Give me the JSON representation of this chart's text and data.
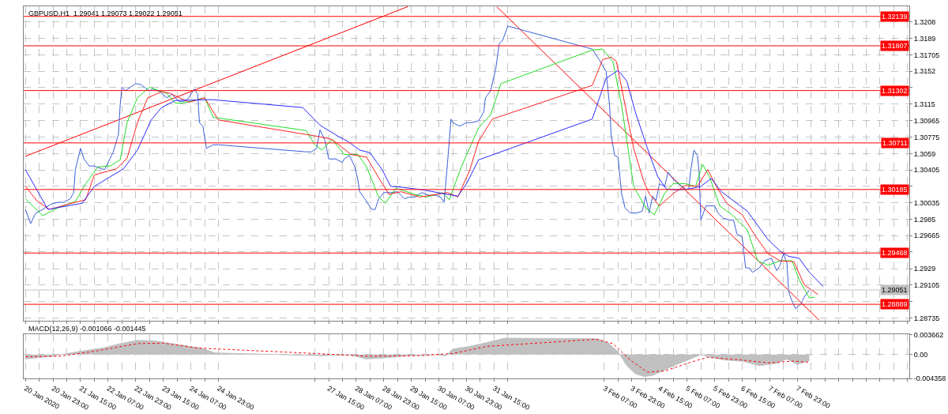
{
  "chart_data": [
    {
      "type": "line",
      "title": "GBPUSD,H1  1.29041 1.29073 1.29022 1.29051",
      "xlim": [
        "2020-01-20T06:00",
        "2020-02-10T16:00"
      ],
      "ylim": [
        1.28703,
        1.32253
      ],
      "tick_labels": "y",
      "grid": true,
      "marker": "none",
      "xticks": [
        {
          "value": "2020-01-20T07:00",
          "label": null
        },
        {
          "value": "2020-01-20T15:00",
          "label": null
        },
        {
          "value": "2020-01-20T23:00",
          "label": null
        },
        {
          "value": "2020-01-21T07:00",
          "label": null
        },
        {
          "value": "2020-01-21T15:00",
          "label": null
        },
        {
          "value": "2020-01-21T23:00",
          "label": null
        },
        {
          "value": "2020-01-22T07:00",
          "label": null
        },
        {
          "value": "2020-01-22T15:00",
          "label": null
        },
        {
          "value": "2020-01-22T23:00",
          "label": null
        },
        {
          "value": "2020-01-23T07:00",
          "label": null
        },
        {
          "value": "2020-01-23T15:00",
          "label": null
        },
        {
          "value": "2020-01-23T23:00",
          "label": null
        },
        {
          "value": "2020-01-24T07:00",
          "label": null
        },
        {
          "value": "2020-01-24T15:00",
          "label": null
        },
        {
          "value": "2020-01-24T23:00",
          "label": null
        },
        {
          "value": "2020-01-27T07:00",
          "label": null
        },
        {
          "value": "2020-01-27T15:00",
          "label": null
        },
        {
          "value": "2020-01-27T23:00",
          "label": null
        },
        {
          "value": "2020-01-28T07:00",
          "label": null
        },
        {
          "value": "2020-01-28T15:00",
          "label": null
        },
        {
          "value": "2020-01-28T23:00",
          "label": null
        },
        {
          "value": "2020-01-29T07:00",
          "label": null
        },
        {
          "value": "2020-01-29T15:00",
          "label": null
        },
        {
          "value": "2020-01-29T23:00",
          "label": null
        },
        {
          "value": "2020-01-30T07:00",
          "label": null
        },
        {
          "value": "2020-01-30T15:00",
          "label": null
        },
        {
          "value": "2020-01-30T23:00",
          "label": null
        },
        {
          "value": "2020-01-31T07:00",
          "label": null
        },
        {
          "value": "2020-01-31T15:00",
          "label": null
        },
        {
          "value": "2020-01-31T23:00",
          "label": null
        },
        {
          "value": "2020-02-03T07:00",
          "label": null
        },
        {
          "value": "2020-02-03T15:00",
          "label": null
        },
        {
          "value": "2020-02-03T23:00",
          "label": null
        },
        {
          "value": "2020-02-04T07:00",
          "label": null
        },
        {
          "value": "2020-02-04T15:00",
          "label": null
        },
        {
          "value": "2020-02-04T23:00",
          "label": null
        },
        {
          "value": "2020-02-05T07:00",
          "label": null
        },
        {
          "value": "2020-02-05T15:00",
          "label": null
        },
        {
          "value": "2020-02-05T23:00",
          "label": null
        },
        {
          "value": "2020-02-06T07:00",
          "label": null
        },
        {
          "value": "2020-02-06T15:00",
          "label": null
        },
        {
          "value": "2020-02-06T23:00",
          "label": null
        },
        {
          "value": "2020-02-07T07:00",
          "label": null
        },
        {
          "value": "2020-02-07T15:00",
          "label": null
        },
        {
          "value": "2020-02-07T23:00",
          "label": null
        },
        {
          "value": "2020-02-08T07:00",
          "label": null
        },
        {
          "value": "2020-02-08T15:00",
          "label": null
        },
        {
          "value": "2020-02-08T23:00",
          "label": null
        },
        {
          "value": "2020-02-09T07:00",
          "label": null
        },
        {
          "value": "2020-02-09T15:00",
          "label": null
        },
        {
          "value": "2020-02-09T23:00",
          "label": null
        },
        {
          "value": "2020-02-10T07:00",
          "label": null
        },
        {
          "value": "2020-02-10T15:00",
          "label": null
        }
      ],
      "yticks": [
        1.3208,
        1.3189,
        1.31705,
        1.3152,
        {
          "value": 1.31335,
          "label": null
        },
        1.3115,
        1.30965,
        1.30775,
        1.3059,
        1.30405,
        {
          "value": 1.3022,
          "label": null
        },
        1.30035,
        1.2985,
        1.29665,
        {
          "value": 1.2948,
          "label": null
        },
        1.2929,
        1.29105,
        {
          "value": 1.2892,
          "label": null
        },
        1.28735
      ],
      "ref_lines": [
        {
          "axis": "y",
          "value": 1.32139,
          "label": "1.32139",
          "color": "#ff0000"
        },
        {
          "axis": "y",
          "value": 1.31807,
          "label": "1.31807",
          "color": "#ff0000"
        },
        {
          "axis": "y",
          "value": 1.31302,
          "label": "1.31302",
          "color": "#ff0000"
        },
        {
          "axis": "y",
          "value": 1.30711,
          "label": "1.30711",
          "color": "#ff0000"
        },
        {
          "axis": "y",
          "value": 1.30185,
          "label": "1.30185",
          "color": "#ff0000"
        },
        {
          "axis": "y",
          "value": 1.29468,
          "label": "1.29468",
          "color": "#ff0000"
        },
        {
          "axis": "y",
          "value": 1.28889,
          "label": "1.28889",
          "color": "#ff0000"
        },
        {
          "axis": "y",
          "value": 1.29051,
          "label": "1.29051",
          "color": "#c0c0c0"
        }
      ],
      "series": [
        {
          "type": "line",
          "color": "#ff0000",
          "x": [
            "2020-01-20T07:00",
            "2020-01-29T13:00"
          ],
          "values": [
            1.3056,
            1.3225
          ]
        },
        {
          "type": "line",
          "color": "#ff0000",
          "x": [
            "2020-01-31T16:30",
            "2020-02-08T11:40"
          ],
          "values": [
            1.3225,
            1.2871
          ]
        },
        {
          "color": "#3b5fd9",
          "x": [
            "2020-01-20T07:00",
            "2020-01-20T10:00",
            "2020-01-20T13:00",
            "2020-01-20T17:00",
            "2020-01-20T22:00",
            "2020-01-21T02:00",
            "2020-01-21T05:00",
            "2020-01-21T09:00",
            "2020-01-21T11:00",
            "2020-01-21T12:00",
            "2020-01-21T15:00",
            "2020-01-21T17:00",
            "2020-01-21T20:00",
            "2020-01-21T23:00",
            "2020-01-22T03:00",
            "2020-01-22T05:00",
            "2020-01-22T08:00",
            "2020-01-22T10:00",
            "2020-01-22T13:00",
            "2020-01-22T14:00",
            "2020-01-22T15:00",
            "2020-01-22T17:00",
            "2020-01-22T20:00",
            "2020-01-22T23:00",
            "2020-01-23T02:00",
            "2020-01-23T04:00",
            "2020-01-23T07:00",
            "2020-01-23T09:00",
            "2020-01-23T13:00",
            "2020-01-23T17:00",
            "2020-01-23T20:00",
            "2020-01-24T00:00",
            "2020-01-24T03:00",
            "2020-01-24T05:00",
            "2020-01-24T09:00",
            "2020-01-24T11:00",
            "2020-01-24T12:00",
            "2020-01-24T14:00",
            "2020-01-24T16:00",
            "2020-01-24T20:00",
            "2020-01-24T23:00",
            "2020-01-27T02:00",
            "2020-01-27T05:00",
            "2020-01-27T08:00",
            "2020-01-27T10:00",
            "2020-01-27T13:00",
            "2020-01-27T15:00",
            "2020-01-27T19:00",
            "2020-01-27T23:00",
            "2020-01-28T00:00",
            "2020-01-28T03:00",
            "2020-01-28T06:00",
            "2020-01-28T08:00",
            "2020-01-28T09:00",
            "2020-01-28T12:00",
            "2020-01-28T16:00",
            "2020-01-28T18:00",
            "2020-01-28T20:00",
            "2020-01-28T23:00",
            "2020-01-29T03:00",
            "2020-01-29T07:00",
            "2020-01-29T11:00",
            "2020-01-29T14:00",
            "2020-01-29T17:00",
            "2020-01-29T21:00",
            "2020-01-30T01:00",
            "2020-01-30T05:00",
            "2020-01-30T08:00",
            "2020-01-30T10:00",
            "2020-01-30T12:00",
            "2020-01-30T14:00",
            "2020-01-30T15:00",
            "2020-01-30T19:00",
            "2020-01-30T23:00",
            "2020-01-31T02:00",
            "2020-01-31T06:00",
            "2020-01-31T09:00",
            "2020-01-31T10:00",
            "2020-01-31T13:00",
            "2020-01-31T16:00",
            "2020-01-31T18:00",
            "2020-01-31T20:00",
            "2020-01-31T23:00",
            "2020-02-03T00:00",
            "2020-02-03T04:00",
            "2020-02-03T08:00",
            "2020-02-03T10:00",
            "2020-02-03T11:00",
            "2020-02-03T13:00",
            "2020-02-03T15:00",
            "2020-02-03T17:00",
            "2020-02-03T19:00",
            "2020-02-03T22:00",
            "2020-02-04T02:00",
            "2020-02-04T05:00",
            "2020-02-04T07:00",
            "2020-02-04T09:00",
            "2020-02-04T11:00",
            "2020-02-04T13:00",
            "2020-02-04T15:00",
            "2020-02-04T18:00",
            "2020-02-04T20:00",
            "2020-02-04T23:00",
            "2020-02-05T02:00",
            "2020-02-05T06:00",
            "2020-02-05T08:00",
            "2020-02-05T09:00",
            "2020-02-05T11:00",
            "2020-02-05T13:00",
            "2020-02-05T14:00",
            "2020-02-05T15:00",
            "2020-02-05T18:00",
            "2020-02-05T20:00",
            "2020-02-05T23:00",
            "2020-02-06T01:00",
            "2020-02-06T04:00",
            "2020-02-06T08:00",
            "2020-02-06T10:00",
            "2020-02-06T12:00",
            "2020-02-06T15:00",
            "2020-02-06T17:00",
            "2020-02-06T19:00",
            "2020-02-06T21:00",
            "2020-02-07T01:00",
            "2020-02-07T04:00",
            "2020-02-07T08:00",
            "2020-02-07T11:00",
            "2020-02-07T13:00",
            "2020-02-07T15:00",
            "2020-02-07T17:00",
            "2020-02-07T18:00",
            "2020-02-07T20:00",
            "2020-02-07T22:00",
            "2020-02-08T01:00",
            "2020-02-08T03:00",
            "2020-02-08T06:00"
          ],
          "values": [
            1.2996,
            1.298,
            1.2992,
            1.2996,
            1.3002,
            1.3004,
            1.3004,
            1.3008,
            1.3015,
            1.3041,
            1.3065,
            1.3053,
            1.3045,
            1.3045,
            1.3042,
            1.3041,
            1.3053,
            1.3061,
            1.3081,
            1.3114,
            1.3134,
            1.313,
            1.3134,
            1.3138,
            1.3137,
            1.3134,
            1.313,
            1.3132,
            1.3129,
            1.3122,
            1.3126,
            1.3118,
            1.3118,
            1.312,
            1.3132,
            1.3126,
            1.3094,
            1.309,
            1.3065,
            1.3069,
            1.3069,
            1.3061,
            1.3061,
            1.3065,
            1.3086,
            1.3073,
            1.3053,
            1.3053,
            1.3049,
            1.3053,
            1.3057,
            1.3045,
            1.3029,
            1.3016,
            1.3008,
            1.2996,
            1.2996,
            1.3008,
            1.3015,
            1.3015,
            1.3016,
            1.3008,
            1.301,
            1.301,
            1.3015,
            1.3012,
            1.3012,
            1.301,
            1.3004,
            1.3049,
            1.3098,
            1.3094,
            1.309,
            1.3094,
            1.3094,
            1.3096,
            1.3106,
            1.3122,
            1.313,
            1.3155,
            1.3183,
            1.3187,
            1.3203,
            1.3177,
            1.3165,
            1.3152,
            1.3114,
            1.3079,
            1.3057,
            1.3055,
            1.3014,
            1.2998,
            1.2992,
            1.2992,
            1.2994,
            1.3011,
            1.2992,
            1.3011,
            1.3006,
            1.3025,
            1.3022,
            1.3038,
            1.303,
            1.3025,
            1.3019,
            1.3019,
            1.3038,
            1.3063,
            1.3057,
            1.3038,
            1.2984,
            1.3,
            1.3,
            1.3,
            1.2992,
            1.2986,
            1.2984,
            1.2984,
            1.2968,
            1.2965,
            1.293,
            1.293,
            1.2925,
            1.293,
            1.2938,
            1.2941,
            1.2927,
            1.2933,
            1.2946,
            1.2935,
            1.2903,
            1.2892,
            1.2884,
            1.2889,
            1.2897,
            1.2905
          ]
        },
        {
          "color": "#22dd22",
          "x": [
            "2020-01-20T07:00",
            "2020-01-20T17:00",
            "2020-01-21T02:00",
            "2020-01-21T12:00",
            "2020-01-21T18:00",
            "2020-01-22T01:00",
            "2020-01-22T08:00",
            "2020-01-22T14:00",
            "2020-01-22T18:00",
            "2020-01-23T00:00",
            "2020-01-23T07:00",
            "2020-01-23T17:00",
            "2020-01-23T22:00",
            "2020-01-24T02:00",
            "2020-01-24T09:00",
            "2020-01-24T15:00",
            "2020-01-24T20:00",
            "2020-01-27T02:00",
            "2020-01-27T07:00",
            "2020-01-27T11:00",
            "2020-01-27T17:00",
            "2020-01-28T00:00",
            "2020-01-28T08:00",
            "2020-01-28T13:00",
            "2020-01-28T20:00",
            "2020-01-29T00:00",
            "2020-01-29T06:00",
            "2020-01-29T17:00",
            "2020-01-30T00:00",
            "2020-01-30T09:00",
            "2020-01-30T13:00",
            "2020-01-30T20:00",
            "2020-01-31T06:00",
            "2020-01-31T13:00",
            "2020-01-31T19:00",
            "2020-02-03T00:00",
            "2020-02-03T06:00",
            "2020-02-03T12:00",
            "2020-02-03T17:00",
            "2020-02-04T00:00",
            "2020-02-04T07:00",
            "2020-02-04T12:00",
            "2020-02-04T18:00",
            "2020-02-04T23:00",
            "2020-02-05T06:00",
            "2020-02-05T12:00",
            "2020-02-05T16:00",
            "2020-02-05T20:00",
            "2020-02-06T02:00",
            "2020-02-06T09:00",
            "2020-02-06T18:00",
            "2020-02-07T00:00",
            "2020-02-07T06:00",
            "2020-02-07T13:00",
            "2020-02-07T20:00",
            "2020-02-08T00:00",
            "2020-02-08T06:00",
            "2020-02-08T09:00"
          ],
          "values": [
            1.3008,
            1.2989,
            1.2998,
            1.3005,
            1.3025,
            1.3044,
            1.3045,
            1.3052,
            1.3094,
            1.3122,
            1.3134,
            1.3127,
            1.3116,
            1.3116,
            1.3119,
            1.3122,
            1.31,
            1.3085,
            1.3069,
            1.3063,
            1.3075,
            1.3058,
            1.3058,
            1.3044,
            1.301,
            1.3003,
            1.302,
            1.3013,
            1.301,
            1.3015,
            1.3007,
            1.3044,
            1.3088,
            1.3103,
            1.3138,
            1.3176,
            1.3177,
            1.3163,
            1.3114,
            1.3022,
            1.2998,
            1.299,
            1.3014,
            1.3025,
            1.3025,
            1.3022,
            1.3047,
            1.3033,
            1.3,
            1.299,
            1.2973,
            1.2938,
            1.2933,
            1.2938,
            1.2938,
            1.2917,
            1.2896,
            1.2897
          ]
        },
        {
          "color": "#ff2020",
          "x": [
            "2020-01-20T07:00",
            "2020-01-20T14:00",
            "2020-01-20T21:00",
            "2020-01-21T10:00",
            "2020-01-21T18:00",
            "2020-01-21T23:00",
            "2020-01-22T12:00",
            "2020-01-22T18:00",
            "2020-01-23T00:00",
            "2020-01-23T06:00",
            "2020-01-23T14:00",
            "2020-01-23T19:00",
            "2020-01-24T06:00",
            "2020-01-24T15:00",
            "2020-01-24T23:00",
            "2020-01-27T10:00",
            "2020-01-27T17:00",
            "2020-01-28T04:00",
            "2020-01-28T13:00",
            "2020-01-28T20:00",
            "2020-01-29T02:00",
            "2020-01-29T09:00",
            "2020-01-29T20:00",
            "2020-01-30T12:00",
            "2020-01-30T18:00",
            "2020-01-31T01:00",
            "2020-01-31T06:00",
            "2020-01-31T14:00",
            "2020-02-03T00:00",
            "2020-02-03T06:00",
            "2020-02-03T11:00",
            "2020-02-03T14:00",
            "2020-02-03T19:00",
            "2020-02-04T00:00",
            "2020-02-04T06:00",
            "2020-02-04T09:00",
            "2020-02-04T15:00",
            "2020-02-04T23:00",
            "2020-02-05T06:00",
            "2020-02-05T13:00",
            "2020-02-05T19:00",
            "2020-02-06T00:00",
            "2020-02-06T06:00",
            "2020-02-06T15:00",
            "2020-02-06T22:00",
            "2020-02-07T06:00",
            "2020-02-07T13:00",
            "2020-02-07T21:00",
            "2020-02-08T03:00",
            "2020-02-08T11:00"
          ],
          "values": [
            1.3022,
            1.3005,
            1.2996,
            1.3003,
            1.3007,
            1.3035,
            1.3042,
            1.3054,
            1.3094,
            1.3122,
            1.3129,
            1.3127,
            1.3117,
            1.3122,
            1.3097,
            1.3078,
            1.3075,
            1.3058,
            1.3055,
            1.3032,
            1.3013,
            1.3016,
            1.301,
            1.3015,
            1.301,
            1.3041,
            1.3073,
            1.3098,
            1.3136,
            1.3165,
            1.3168,
            1.3163,
            1.3114,
            1.3065,
            1.3027,
            1.3014,
            1.3,
            1.3014,
            1.3023,
            1.3022,
            1.3041,
            1.3022,
            1.3003,
            1.299,
            1.2968,
            1.2946,
            1.2938,
            1.2937,
            1.2911,
            1.29
          ]
        },
        {
          "color": "#2a2aff",
          "x": [
            "2020-01-20T07:00",
            "2020-01-20T20:00",
            "2020-01-21T16:00",
            "2020-01-21T23:00",
            "2020-01-22T16:00",
            "2020-01-23T00:00",
            "2020-01-23T08:00",
            "2020-01-23T14:00",
            "2020-01-23T22:00",
            "2020-01-24T19:00",
            "2020-01-27T00:00",
            "2020-01-27T10:00",
            "2020-01-27T21:00",
            "2020-01-28T02:00",
            "2020-01-28T09:00",
            "2020-01-28T15:00",
            "2020-01-28T22:00",
            "2020-01-29T03:00",
            "2020-01-29T10:00",
            "2020-01-29T22:00",
            "2020-01-30T12:00",
            "2020-01-30T18:00",
            "2020-01-30T23:00",
            "2020-01-31T06:00",
            "2020-02-03T00:00",
            "2020-02-03T08:00",
            "2020-02-03T15:00",
            "2020-02-03T20:00",
            "2020-02-04T01:00",
            "2020-02-04T08:00",
            "2020-02-04T14:00",
            "2020-02-04T19:00",
            "2020-02-05T01:00",
            "2020-02-05T08:00",
            "2020-02-05T15:00",
            "2020-02-05T21:00",
            "2020-02-06T03:00",
            "2020-02-06T18:00",
            "2020-02-07T06:00",
            "2020-02-07T13:00",
            "2020-02-07T18:00",
            "2020-02-08T00:00",
            "2020-02-08T06:00",
            "2020-02-08T14:00"
          ],
          "values": [
            1.3041,
            1.2996,
            1.3003,
            1.3022,
            1.3042,
            1.3063,
            1.3097,
            1.3111,
            1.3119,
            1.312,
            1.3111,
            1.3091,
            1.3078,
            1.3073,
            1.3063,
            1.306,
            1.3041,
            1.3022,
            1.3021,
            1.3018,
            1.3013,
            1.3011,
            1.3025,
            1.3052,
            1.3098,
            1.3144,
            1.3153,
            1.3141,
            1.3106,
            1.3065,
            1.3033,
            1.3019,
            1.3018,
            1.3019,
            1.3022,
            1.3031,
            1.3016,
            1.2994,
            1.2962,
            1.2949,
            1.2943,
            1.2941,
            1.2925,
            1.2909
          ]
        }
      ]
    },
    {
      "type": "area",
      "title": "MACD(12,26,9) -0.001066 -0.001445",
      "xlim": [
        "2020-01-20T06:00",
        "2020-02-10T16:00"
      ],
      "ylim": [
        -0.004358,
        0.003662
      ],
      "grid": true,
      "marker": "none",
      "xticks": [
        {
          "value": "2020-01-20T07:00",
          "label": "20 Jan 2020"
        },
        {
          "value": "2020-01-20T15:00",
          "label": null
        },
        {
          "value": "2020-01-20T23:00",
          "label": "20 Jan 23:00"
        },
        {
          "value": "2020-01-21T07:00",
          "label": null
        },
        {
          "value": "2020-01-21T15:00",
          "label": "21 Jan 15:00"
        },
        {
          "value": "2020-01-21T23:00",
          "label": null
        },
        {
          "value": "2020-01-22T07:00",
          "label": "22 Jan 07:00"
        },
        {
          "value": "2020-01-22T15:00",
          "label": null
        },
        {
          "value": "2020-01-22T23:00",
          "label": "22 Jan 23:00"
        },
        {
          "value": "2020-01-23T07:00",
          "label": null
        },
        {
          "value": "2020-01-23T15:00",
          "label": "23 Jan 15:00"
        },
        {
          "value": "2020-01-23T23:00",
          "label": null
        },
        {
          "value": "2020-01-24T07:00",
          "label": "24 Jan 07:00"
        },
        {
          "value": "2020-01-24T15:00",
          "label": null
        },
        {
          "value": "2020-01-24T23:00",
          "label": "24 Jan 23:00"
        },
        {
          "value": "2020-01-27T07:00",
          "label": null
        },
        {
          "value": "2020-01-27T15:00",
          "label": "27 Jan 15:00"
        },
        {
          "value": "2020-01-27T23:00",
          "label": null
        },
        {
          "value": "2020-01-28T07:00",
          "label": "28 Jan 07:00"
        },
        {
          "value": "2020-01-28T15:00",
          "label": null
        },
        {
          "value": "2020-01-28T23:00",
          "label": "28 Jan 23:00"
        },
        {
          "value": "2020-01-29T07:00",
          "label": null
        },
        {
          "value": "2020-01-29T15:00",
          "label": "29 Jan 15:00"
        },
        {
          "value": "2020-01-29T23:00",
          "label": null
        },
        {
          "value": "2020-01-30T07:00",
          "label": "30 Jan 07:00"
        },
        {
          "value": "2020-01-30T15:00",
          "label": null
        },
        {
          "value": "2020-01-30T23:00",
          "label": "30 Jan 23:00"
        },
        {
          "value": "2020-01-31T07:00",
          "label": null
        },
        {
          "value": "2020-01-31T15:00",
          "label": "31 Jan 15:00"
        },
        {
          "value": "2020-01-31T23:00",
          "label": null
        },
        {
          "value": "2020-02-03T07:00",
          "label": "3 Feb 07:00"
        },
        {
          "value": "2020-02-03T15:00",
          "label": null
        },
        {
          "value": "2020-02-03T23:00",
          "label": "3 Feb 23:00"
        },
        {
          "value": "2020-02-04T07:00",
          "label": null
        },
        {
          "value": "2020-02-04T15:00",
          "label": "4 Feb 15:00"
        },
        {
          "value": "2020-02-04T23:00",
          "label": null
        },
        {
          "value": "2020-02-05T07:00",
          "label": "5 Feb 07:00"
        },
        {
          "value": "2020-02-05T15:00",
          "label": null
        },
        {
          "value": "2020-02-05T23:00",
          "label": "5 Feb 23:00"
        },
        {
          "value": "2020-02-06T07:00",
          "label": null
        },
        {
          "value": "2020-02-06T15:00",
          "label": "6 Feb 15:00"
        },
        {
          "value": "2020-02-06T23:00",
          "label": null
        },
        {
          "value": "2020-02-07T07:00",
          "label": "7 Feb 07:00"
        },
        {
          "value": "2020-02-07T15:00",
          "label": null
        },
        {
          "value": "2020-02-07T23:00",
          "label": "7 Feb 23:00"
        },
        {
          "value": "2020-02-08T07:00",
          "label": null
        },
        {
          "value": "2020-02-08T15:00",
          "label": null
        },
        {
          "value": "2020-02-08T23:00",
          "label": null
        },
        {
          "value": "2020-02-09T07:00",
          "label": null
        },
        {
          "value": "2020-02-09T15:00",
          "label": null
        },
        {
          "value": "2020-02-09T23:00",
          "label": null
        },
        {
          "value": "2020-02-10T07:00",
          "label": null
        },
        {
          "value": "2020-02-10T15:00",
          "label": null
        }
      ],
      "yticks": [
        0.003662,
        {
          "value": 0,
          "label": "0.00"
        },
        -0.004358
      ],
      "series": [
        {
          "type": "area",
          "color": "#c0c0c0",
          "x": [
            "2020-01-20T07:00",
            "2020-01-20T22:00",
            "2020-01-21T13:00",
            "2020-01-22T04:00",
            "2020-01-22T14:00",
            "2020-01-23T00:00",
            "2020-01-23T10:00",
            "2020-01-23T20:00",
            "2020-01-24T06:00",
            "2020-01-24T13:00",
            "2020-01-24T21:00",
            "2020-01-27T12:00",
            "2020-01-28T03:00",
            "2020-01-28T13:00",
            "2020-01-28T23:00",
            "2020-01-29T14:00",
            "2020-01-30T05:00",
            "2020-01-30T11:00",
            "2020-01-30T15:00",
            "2020-01-31T01:00",
            "2020-01-31T11:00",
            "2020-01-31T21:00",
            "2020-02-03T03:00",
            "2020-02-03T09:00",
            "2020-02-03T15:00",
            "2020-02-03T20:00",
            "2020-02-04T01:00",
            "2020-02-04T06:00",
            "2020-02-04T11:00",
            "2020-02-04T18:00",
            "2020-02-05T01:00",
            "2020-02-05T09:00",
            "2020-02-05T15:00",
            "2020-02-05T21:00",
            "2020-02-06T05:00",
            "2020-02-06T15:00",
            "2020-02-07T01:00",
            "2020-02-07T11:00",
            "2020-02-07T17:00",
            "2020-02-07T23:00",
            "2020-02-08T06:00"
          ],
          "values": [
            -0.0008,
            -0.0003,
            0.0005,
            0.0012,
            0.002,
            0.0026,
            0.0025,
            0.002,
            0.0015,
            0.0012,
            0.0003,
            -0.0002,
            0.0,
            -0.0008,
            -0.0006,
            -0.0002,
            0.0,
            -0.0002,
            0.001,
            0.0015,
            0.0022,
            0.003,
            0.0029,
            0.0022,
            0.0005,
            -0.002,
            -0.0035,
            -0.004,
            -0.0038,
            -0.0028,
            -0.0018,
            -0.0008,
            0.0,
            -0.0005,
            -0.001,
            -0.0012,
            -0.002,
            -0.0016,
            -0.0008,
            -0.0018,
            -0.0011
          ]
        },
        {
          "type": "line",
          "color": "#ff0000",
          "line_style": "dotted",
          "x": [
            "2020-01-20T07:00",
            "2020-01-21T03:00",
            "2020-01-21T23:00",
            "2020-01-23T00:00",
            "2020-01-23T15:00",
            "2020-01-24T11:00",
            "2020-01-27T07:00",
            "2020-01-28T13:00",
            "2020-01-29T19:00",
            "2020-01-30T15:00",
            "2020-01-31T11:00",
            "2020-02-03T02:00",
            "2020-02-03T12:00",
            "2020-02-03T22:00",
            "2020-02-04T08:00",
            "2020-02-04T18:00",
            "2020-02-05T09:00",
            "2020-02-05T19:00",
            "2020-02-06T15:00",
            "2020-02-07T06:00",
            "2020-02-07T21:00",
            "2020-02-08T06:00"
          ],
          "values": [
            -0.0004,
            -0.0003,
            0.0006,
            0.002,
            0.0021,
            0.0012,
            0.0002,
            -0.0003,
            -0.0002,
            0.0002,
            0.0015,
            0.0028,
            0.002,
            -0.001,
            -0.0032,
            -0.003,
            -0.0014,
            -0.0005,
            -0.001,
            -0.0015,
            -0.0012,
            -0.0014
          ]
        }
      ]
    }
  ]
}
